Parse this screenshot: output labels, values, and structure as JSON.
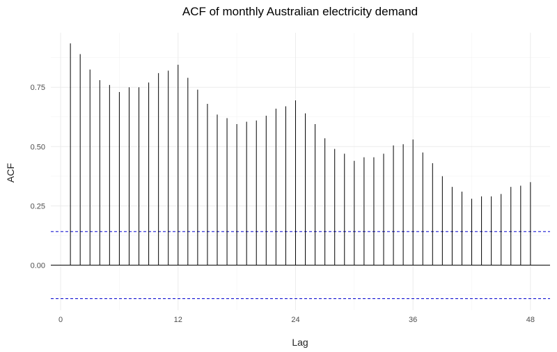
{
  "chart_data": {
    "type": "bar",
    "title": "ACF of monthly Australian electricity demand",
    "xlabel": "Lag",
    "ylabel": "ACF",
    "x": [
      1,
      2,
      3,
      4,
      5,
      6,
      7,
      8,
      9,
      10,
      11,
      12,
      13,
      14,
      15,
      16,
      17,
      18,
      19,
      20,
      21,
      22,
      23,
      24,
      25,
      26,
      27,
      28,
      29,
      30,
      31,
      32,
      33,
      34,
      35,
      36,
      37,
      38,
      39,
      40,
      41,
      42,
      43,
      44,
      45,
      46,
      47,
      48
    ],
    "values": [
      0.935,
      0.89,
      0.825,
      0.78,
      0.76,
      0.73,
      0.75,
      0.75,
      0.77,
      0.81,
      0.82,
      0.845,
      0.79,
      0.74,
      0.68,
      0.635,
      0.62,
      0.595,
      0.605,
      0.61,
      0.63,
      0.66,
      0.67,
      0.695,
      0.64,
      0.595,
      0.535,
      0.49,
      0.47,
      0.44,
      0.455,
      0.455,
      0.47,
      0.505,
      0.51,
      0.53,
      0.475,
      0.43,
      0.375,
      0.33,
      0.31,
      0.28,
      0.29,
      0.29,
      0.3,
      0.33,
      0.335,
      0.35
    ],
    "confidence_bound": 0.1414,
    "confidence_color": "#0000cd",
    "xlim": [
      -1,
      50
    ],
    "ylim": [
      -0.19,
      0.98
    ],
    "x_ticks": [
      0,
      12,
      24,
      36,
      48
    ],
    "y_ticks": [
      0.0,
      0.25,
      0.5,
      0.75
    ],
    "x_tick_labels": [
      "0",
      "12",
      "24",
      "36",
      "48"
    ],
    "y_tick_labels": [
      "0.00",
      "0.25",
      "0.50",
      "0.75"
    ],
    "grid": true,
    "legend": "none"
  }
}
